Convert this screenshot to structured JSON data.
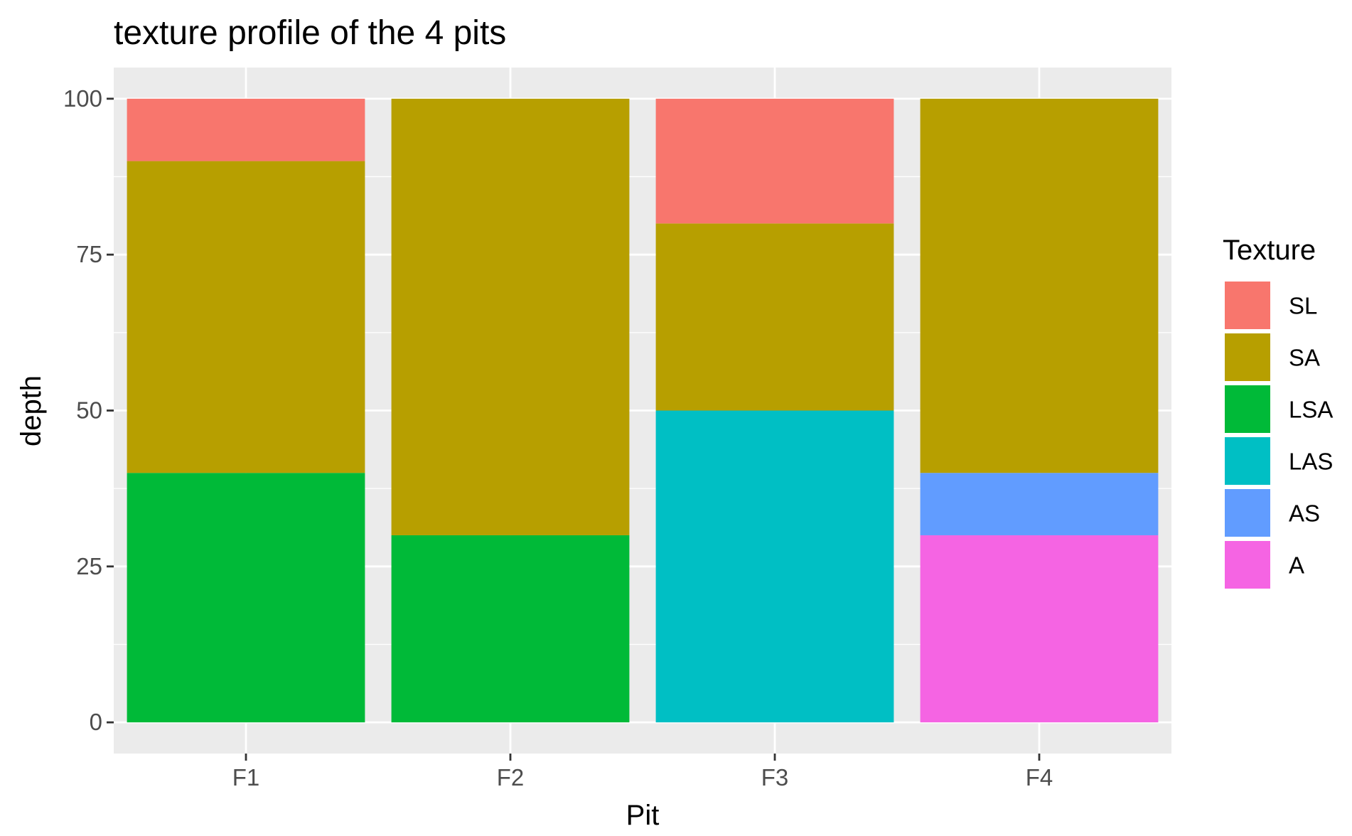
{
  "chart_data": {
    "type": "bar",
    "stacked": true,
    "title": "texture profile of the 4 pits",
    "xlabel": "Pit",
    "ylabel": "depth",
    "categories": [
      "F1",
      "F2",
      "F3",
      "F4"
    ],
    "ylim": [
      -5,
      105
    ],
    "yticks": [
      0,
      25,
      50,
      75,
      100
    ],
    "grid": true,
    "legend": {
      "title": "Texture",
      "position": "right",
      "items": [
        "SL",
        "SA",
        "LSA",
        "LAS",
        "AS",
        "A"
      ]
    },
    "stack_order": [
      "A",
      "AS",
      "LAS",
      "LSA",
      "SA",
      "SL"
    ],
    "series": [
      {
        "name": "SL",
        "color": "#F8766D",
        "values": [
          10,
          0,
          20,
          0
        ]
      },
      {
        "name": "SA",
        "color": "#B79F00",
        "values": [
          50,
          70,
          30,
          60
        ]
      },
      {
        "name": "LSA",
        "color": "#00BA38",
        "values": [
          40,
          30,
          0,
          0
        ]
      },
      {
        "name": "LAS",
        "color": "#00BFC4",
        "values": [
          0,
          0,
          50,
          0
        ]
      },
      {
        "name": "AS",
        "color": "#619CFF",
        "values": [
          0,
          0,
          0,
          10
        ]
      },
      {
        "name": "A",
        "color": "#F564E3",
        "values": [
          0,
          0,
          0,
          30
        ]
      }
    ],
    "panel_background": "#EBEBEB",
    "grid_color": "#FFFFFF"
  }
}
